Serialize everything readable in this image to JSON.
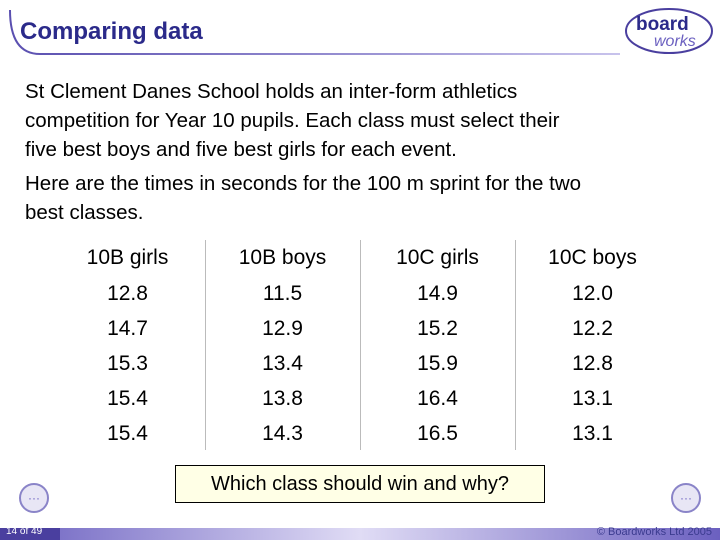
{
  "header": {
    "title": "Comparing data"
  },
  "logo": {
    "line1": "board",
    "line2": "works"
  },
  "body": {
    "lines": [
      "St Clement Danes School holds an inter-form athletics",
      "competition for Year 10 pupils. Each class must select their",
      "five best boys and five best girls for each event.",
      "Here are the times in seconds for the 100 m sprint for the two",
      "best classes."
    ]
  },
  "table": {
    "headers": [
      "10B girls",
      "10B boys",
      "10C girls",
      "10C boys"
    ],
    "rows": [
      [
        "12.8",
        "11.5",
        "14.9",
        "12.0"
      ],
      [
        "14.7",
        "12.9",
        "15.2",
        "12.2"
      ],
      [
        "15.3",
        "13.4",
        "15.9",
        "12.8"
      ],
      [
        "15.4",
        "13.8",
        "16.4",
        "13.1"
      ],
      [
        "15.4",
        "14.3",
        "16.5",
        "13.1"
      ]
    ]
  },
  "question": "Which class should win and why?",
  "footer": {
    "page": "14 of 49",
    "copyright": "© Boardworks Ltd 2005"
  }
}
